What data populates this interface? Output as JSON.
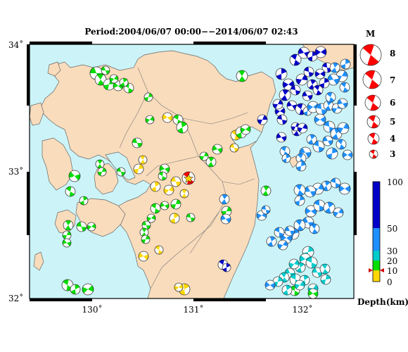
{
  "title": "Period:2004/06/07 00:00−−2014/06/07 02:43",
  "axes": {
    "lat_labels": [
      "34˚",
      "33˚",
      "32˚"
    ],
    "lon_labels": [
      "130˚",
      "131˚",
      "132˚"
    ]
  },
  "magnitude_legend": {
    "header": "M",
    "items": [
      "8",
      "7",
      "6",
      "5",
      "4",
      "3"
    ]
  },
  "depth_scale": {
    "labels": [
      "100",
      "50",
      "30",
      "20",
      "10",
      "0"
    ],
    "unit_label": "Depth(km)",
    "bands": [
      {
        "from": 0,
        "to": 10,
        "color": "#ffd700"
      },
      {
        "from": 10,
        "to": 20,
        "color": "#00dd00"
      },
      {
        "from": 20,
        "to": 30,
        "color": "#00cccc"
      },
      {
        "from": 30,
        "to": 50,
        "color": "#1e90ff"
      },
      {
        "from": 50,
        "to": 100,
        "color": "#0000c8"
      }
    ],
    "current_depth_marker": 10
  },
  "colors": {
    "sea": "#ccf4f8",
    "land": "#f9dcbc",
    "main_event": "#ff0000"
  },
  "main_event_symbol": "red beach ball with yellow star"
}
